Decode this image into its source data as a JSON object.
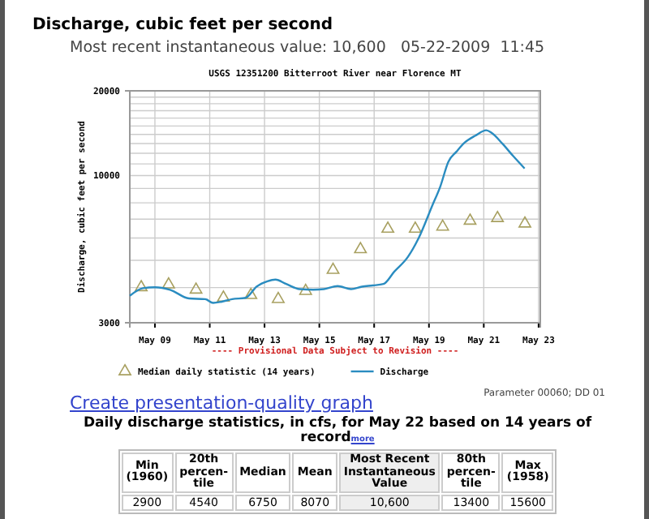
{
  "chart_data": {
    "type": "line",
    "title": "Discharge, cubic feet per second",
    "subtitle": "Most recent instantaneous value: 10,600   05-22-2009  11:45",
    "ylabel": "Discharge, cubic feet per second",
    "log": true,
    "grid": true,
    "legend": "bottom",
    "annotations": [
      "USGS 12351200 Bitterroot River near Florence MT",
      "---- Provisional Data Subject to Revision ----",
      "Create presentation-quality graph",
      "Parameter 00060; DD 01",
      "Daily discharge statistics, in cfs, for May 22 based on 14 years of record",
      "more",
      "Min (1960)",
      "20th percen-tile",
      "Median",
      "Mean",
      "Most Recent Instantaneous Value",
      "80th percen-tile",
      "Max (1958)",
      "2900",
      "4540",
      "6750",
      "8070",
      "10,600",
      "13400",
      "15600"
    ],
    "xlim": [
      "2009-05-08T02:00",
      "2009-05-23T01:30"
    ],
    "xticks": [
      {
        "value": "2009-05-09",
        "label": "May 09"
      },
      {
        "value": "2009-05-11",
        "label": "May 11"
      },
      {
        "value": "2009-05-13",
        "label": "May 13"
      },
      {
        "value": "2009-05-15",
        "label": "May 15"
      },
      {
        "value": "2009-05-17",
        "label": "May 17"
      },
      {
        "value": "2009-05-19",
        "label": "May 19"
      },
      {
        "value": "2009-05-21",
        "label": "May 21"
      },
      {
        "value": "2009-05-23",
        "label": "May 23"
      }
    ],
    "ylim": [
      3000,
      20000
    ],
    "yticks": [
      3000,
      {
        "value": 4000,
        "label": null
      },
      {
        "value": 5000,
        "label": null
      },
      {
        "value": 6000,
        "label": null
      },
      {
        "value": 7000,
        "label": null
      },
      {
        "value": 8000,
        "label": null
      },
      {
        "value": 9000,
        "label": null
      },
      10000,
      {
        "value": 11000,
        "label": null
      },
      {
        "value": 12000,
        "label": null
      },
      {
        "value": 13000,
        "label": null
      },
      {
        "value": 14000,
        "label": null
      },
      {
        "value": 15000,
        "label": null
      },
      {
        "value": 16000,
        "label": null
      },
      {
        "value": 17000,
        "label": null
      },
      {
        "value": 18000,
        "label": null
      },
      {
        "value": 19000,
        "label": null
      },
      20000
    ],
    "series": [
      {
        "name": "Median daily statistic (14 years)",
        "type": "scatter",
        "marker": "triangle",
        "color": "#a8a060",
        "x": [
          "2009-05-08T12:00",
          "2009-05-09T12:00",
          "2009-05-10T12:00",
          "2009-05-11T12:00",
          "2009-05-12T12:00",
          "2009-05-13T12:00",
          "2009-05-14T12:00",
          "2009-05-15T12:00",
          "2009-05-16T12:00",
          "2009-05-17T12:00",
          "2009-05-18T12:00",
          "2009-05-19T12:00",
          "2009-05-20T12:00",
          "2009-05-21T12:00",
          "2009-05-22T12:00"
        ],
        "values": [
          4010,
          4100,
          3930,
          3680,
          3760,
          3640,
          3890,
          4620,
          5470,
          6470,
          6470,
          6580,
          6910,
          7060,
          6750
        ]
      },
      {
        "name": "Discharge",
        "color": "#2a8cc0",
        "x": [
          "2009-05-08T02:00",
          "2009-05-08T13:30",
          "2009-05-09T00:00",
          "2009-05-09T13:15",
          "2009-05-10T05:50",
          "2009-05-10T20:00",
          "2009-05-11T03:00",
          "2009-05-11T10:00",
          "2009-05-11T19:40",
          "2009-05-12T07:30",
          "2009-05-12T17:00",
          "2009-05-13T02:30",
          "2009-05-13T09:30",
          "2009-05-13T19:00",
          "2009-05-14T06:50",
          "2009-05-14T18:40",
          "2009-05-15T04:00",
          "2009-05-15T16:00",
          "2009-05-16T03:50",
          "2009-05-16T13:20",
          "2009-05-16T22:40",
          "2009-05-17T08:10",
          "2009-05-17T17:40",
          "2009-05-18T05:30",
          "2009-05-18T15:00",
          "2009-05-19T02:50",
          "2009-05-19T09:50",
          "2009-05-19T17:00",
          "2009-05-20T00:00",
          "2009-05-20T07:10",
          "2009-05-20T16:40",
          "2009-05-21T02:10",
          "2009-05-21T06:50",
          "2009-05-21T16:20",
          "2009-05-22T01:50",
          "2009-05-22T11:45"
        ],
        "values": [
          3740,
          3980,
          4010,
          3930,
          3660,
          3640,
          3530,
          3560,
          3640,
          3680,
          4030,
          4210,
          4270,
          4120,
          3950,
          3930,
          3950,
          4050,
          3950,
          4030,
          4070,
          4120,
          4560,
          5140,
          6000,
          7810,
          9120,
          11200,
          12150,
          13090,
          13870,
          14490,
          14180,
          12980,
          11720,
          10600
        ]
      }
    ]
  }
}
